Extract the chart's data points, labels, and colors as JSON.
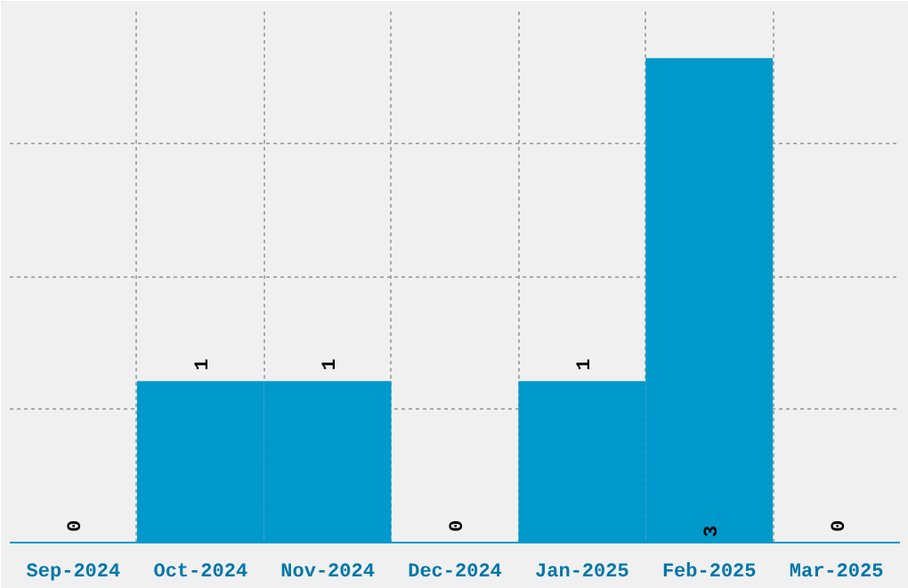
{
  "chart_data": {
    "type": "bar",
    "categories": [
      "Sep-2024",
      "Oct-2024",
      "Nov-2024",
      "Dec-2024",
      "Jan-2025",
      "Feb-2025",
      "Mar-2025"
    ],
    "values": [
      0,
      1,
      1,
      0,
      1,
      3,
      0
    ],
    "color": "#0099cc",
    "data_labels": true,
    "grid": true,
    "tick_labels": "x",
    "ylim": [
      0,
      3.3
    ],
    "yticks": [
      {
        "value": 0.825,
        "label": null
      },
      {
        "value": 1.65,
        "label": null
      },
      {
        "value": 2.475,
        "label": null
      }
    ]
  }
}
